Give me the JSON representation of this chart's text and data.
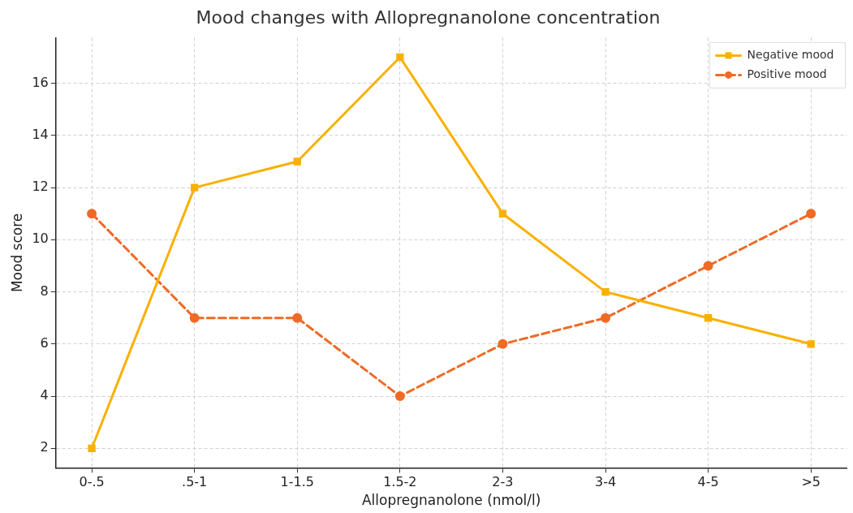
{
  "chart_data": {
    "type": "line",
    "title": "Mood changes with Allopregnanolone concentration",
    "xlabel": "Allopregnanolone (nmol/l)",
    "ylabel": "Mood score",
    "categories": [
      "0-.5",
      ".5-1",
      "1-1.5",
      "1.5-2",
      "2-3",
      "3-4",
      "4-5",
      ">5"
    ],
    "series": [
      {
        "name": "Negative mood",
        "color": "#f9b000",
        "values": [
          2,
          12,
          13,
          17,
          11,
          8,
          7,
          6
        ],
        "marker": "square",
        "line_style": "solid"
      },
      {
        "name": "Positive mood",
        "color": "#ef6a24",
        "values": [
          11,
          7,
          7,
          4,
          6,
          7,
          9,
          11
        ],
        "marker": "circle",
        "line_style": "dashed"
      }
    ],
    "ylim": [
      1.25,
      17.75
    ],
    "yticks": [
      2,
      4,
      6,
      8,
      10,
      12,
      14,
      16
    ],
    "grid": true,
    "legend": "top right"
  }
}
